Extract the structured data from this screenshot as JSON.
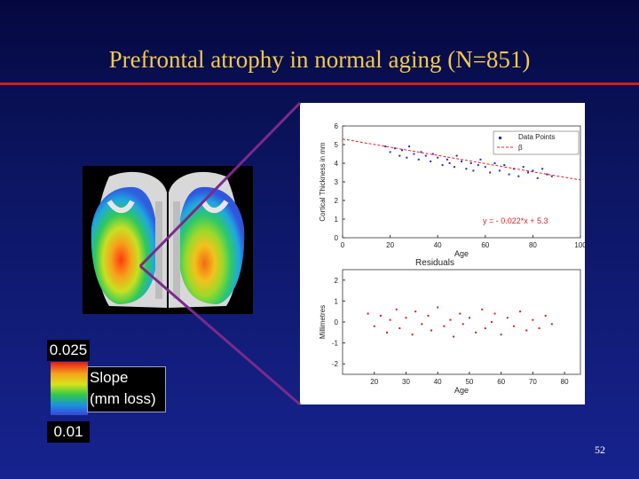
{
  "slide": {
    "title": "Prefrontal atrophy in normal aging (N=851)",
    "page_number": "52"
  },
  "legend": {
    "max": "0.025",
    "min": "0.01",
    "label_line1": "Slope",
    "label_line2": "(mm loss)"
  },
  "colors": {
    "background": "#0b1560",
    "title": "#f2c94c",
    "rule": "#d61c1c",
    "scatter_top": "#1f2bd0",
    "scatter_bottom": "#d61c1c",
    "fit_line": "#e02020",
    "connector": "#7a2a8c"
  },
  "chart_data": [
    {
      "type": "scatter",
      "title": "",
      "xlabel": "Age",
      "ylabel": "Cortical Thickness in mm",
      "xlim": [
        0,
        100
      ],
      "ylim": [
        0,
        6
      ],
      "xticks": [
        0,
        20,
        40,
        60,
        80,
        100
      ],
      "yticks": [
        0,
        1,
        2,
        3,
        4,
        5,
        6
      ],
      "legend": [
        "Data Points",
        "β"
      ],
      "legend_position": "top-right",
      "annotation": "y = - 0.022*x + 5.3",
      "fit": {
        "slope": -0.022,
        "intercept": 5.3
      },
      "series": [
        {
          "name": "Data Points",
          "x": [
            18,
            20,
            22,
            24,
            25,
            27,
            28,
            30,
            32,
            33,
            35,
            37,
            38,
            40,
            42,
            44,
            45,
            47,
            48,
            50,
            52,
            54,
            55,
            57,
            58,
            60,
            62,
            64,
            66,
            68,
            70,
            72,
            74,
            76,
            78,
            80,
            82,
            84,
            86,
            88
          ],
          "y": [
            4.9,
            4.6,
            4.8,
            4.4,
            4.7,
            4.3,
            4.9,
            4.5,
            4.2,
            4.6,
            4.4,
            4.1,
            4.5,
            4.3,
            3.9,
            4.2,
            4.0,
            3.8,
            4.4,
            4.1,
            3.7,
            4.0,
            3.6,
            3.9,
            4.2,
            3.8,
            3.5,
            4.0,
            3.6,
            3.9,
            3.4,
            3.7,
            3.3,
            3.8,
            3.5,
            3.6,
            3.2,
            3.7,
            3.4,
            3.3
          ]
        }
      ]
    },
    {
      "type": "scatter",
      "title": "Residuals",
      "xlabel": "Age",
      "ylabel": "Millimetres",
      "xlim": [
        10,
        85
      ],
      "ylim": [
        -2.5,
        2.5
      ],
      "xticks": [
        20,
        30,
        40,
        50,
        60,
        70,
        80
      ],
      "yticks": [
        -2,
        -1,
        0,
        1,
        2
      ],
      "series": [
        {
          "name": "",
          "x": [
            18,
            20,
            22,
            24,
            25,
            27,
            28,
            30,
            32,
            33,
            35,
            37,
            38,
            40,
            42,
            44,
            45,
            47,
            48,
            50,
            52,
            54,
            55,
            57,
            58,
            60,
            62,
            64,
            66,
            68,
            70,
            72,
            74,
            76
          ],
          "y": [
            0.4,
            -0.2,
            0.3,
            -0.5,
            0.1,
            0.6,
            -0.3,
            0.2,
            -0.6,
            0.5,
            -0.1,
            0.3,
            -0.4,
            0.7,
            -0.2,
            0.1,
            -0.7,
            0.4,
            -0.1,
            0.2,
            -0.5,
            0.6,
            -0.3,
            0.0,
            0.4,
            -0.6,
            0.2,
            -0.2,
            0.5,
            -0.4,
            0.1,
            -0.3,
            0.3,
            -0.1
          ]
        }
      ]
    }
  ]
}
